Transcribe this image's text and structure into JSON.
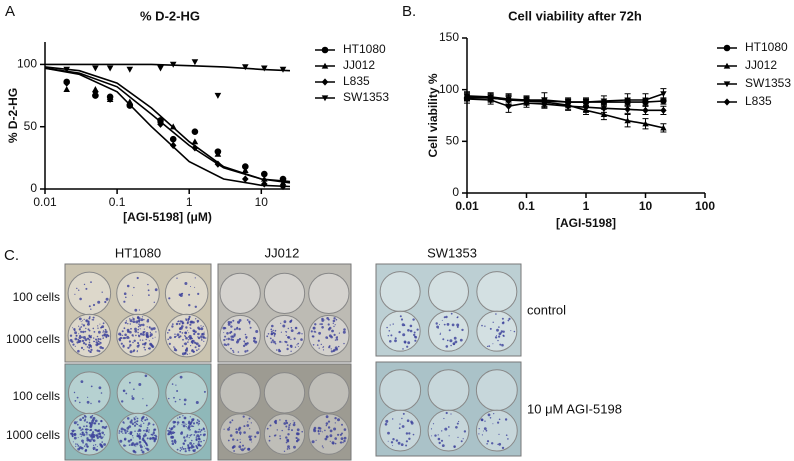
{
  "chart_data": [
    {
      "type": "scatter",
      "panel_label": "A",
      "title": "% D-2-HG",
      "x_label": "[AGI-5198] (μM)",
      "y_label": "% D-2-HG",
      "log_x": true,
      "xlim": [
        0.01,
        25
      ],
      "xticks": [
        0.01,
        0.1,
        1,
        10
      ],
      "ylim": [
        0,
        118
      ],
      "yticks": [
        0,
        50,
        100
      ],
      "x": [
        0.02,
        0.05,
        0.08,
        0.15,
        0.4,
        0.6,
        1.2,
        2.5,
        6,
        11,
        20
      ],
      "fit_x": [
        0.01,
        0.03,
        0.1,
        0.3,
        1,
        3,
        10,
        25
      ],
      "series": [
        {
          "name": "HT1080",
          "marker": "circle",
          "color": "#000000",
          "values": [
            86,
            75,
            74,
            67,
            55,
            40,
            46,
            30,
            18,
            12,
            8
          ],
          "fit_values": [
            97,
            93,
            82,
            60,
            35,
            17,
            8,
            6
          ]
        },
        {
          "name": "JJ012",
          "marker": "triangle-up",
          "color": "#000000",
          "values": [
            80,
            80,
            72,
            70,
            55,
            50,
            38,
            28,
            15,
            8,
            5
          ],
          "fit_values": [
            98,
            95,
            85,
            65,
            38,
            18,
            8,
            5
          ]
        },
        {
          "name": "L835",
          "marker": "diamond",
          "color": "#000000",
          "values": [
            85,
            78,
            72,
            68,
            52,
            35,
            33,
            20,
            8,
            4,
            2
          ],
          "fit_values": [
            97,
            92,
            78,
            50,
            22,
            8,
            3,
            2
          ]
        },
        {
          "name": "SW1353",
          "marker": "triangle-down",
          "color": "#000000",
          "values": [
            96,
            97,
            97,
            96,
            97,
            100,
            102,
            75,
            98,
            97,
            96
          ],
          "fit_values": [
            100,
            100,
            100,
            100,
            99,
            98,
            96,
            95
          ]
        }
      ]
    },
    {
      "type": "line",
      "panel_label": "B.",
      "title": "Cell viability after 72h",
      "x_label": "[AGI-5198]",
      "y_label": "Cell viability %",
      "log_x": true,
      "xlim": [
        0.01,
        100
      ],
      "xticks": [
        0.01,
        0.1,
        1,
        10,
        100
      ],
      "ylim": [
        0,
        150
      ],
      "yticks": [
        0,
        50,
        100,
        150
      ],
      "x": [
        0.01,
        0.025,
        0.05,
        0.1,
        0.2,
        0.5,
        1,
        2,
        5,
        10,
        20
      ],
      "series": [
        {
          "name": "HT1080",
          "marker": "circle",
          "color": "#000000",
          "values": [
            92,
            92,
            90,
            90,
            89,
            88,
            88,
            88,
            88,
            88,
            89
          ],
          "errors": [
            3,
            3,
            4,
            3,
            3,
            3,
            3,
            3,
            3,
            3,
            3
          ]
        },
        {
          "name": "JJ012",
          "marker": "triangle-up",
          "color": "#000000",
          "values": [
            93,
            92,
            90,
            89,
            88,
            85,
            80,
            76,
            70,
            67,
            63
          ],
          "errors": [
            4,
            4,
            5,
            4,
            4,
            4,
            4,
            5,
            6,
            5,
            4
          ]
        },
        {
          "name": "SW1353",
          "marker": "triangle-down",
          "color": "#000000",
          "values": [
            94,
            93,
            91,
            90,
            90,
            88,
            88,
            89,
            90,
            90,
            96
          ],
          "errors": [
            4,
            4,
            5,
            4,
            7,
            4,
            4,
            5,
            6,
            6,
            5
          ]
        },
        {
          "name": "L835",
          "marker": "diamond",
          "color": "#000000",
          "values": [
            91,
            90,
            84,
            87,
            86,
            84,
            83,
            82,
            81,
            80,
            80
          ],
          "errors": [
            4,
            4,
            6,
            4,
            4,
            4,
            4,
            4,
            4,
            4,
            4
          ]
        }
      ]
    }
  ],
  "panel_c": {
    "label": "C.",
    "columns": [
      "HT1080",
      "JJ012",
      "SW1353"
    ],
    "rows": [
      "100 cells",
      "1000 cells",
      "100 cells",
      "1000 cells"
    ],
    "conditions": [
      "control",
      "10 μM AGI-5198"
    ]
  }
}
